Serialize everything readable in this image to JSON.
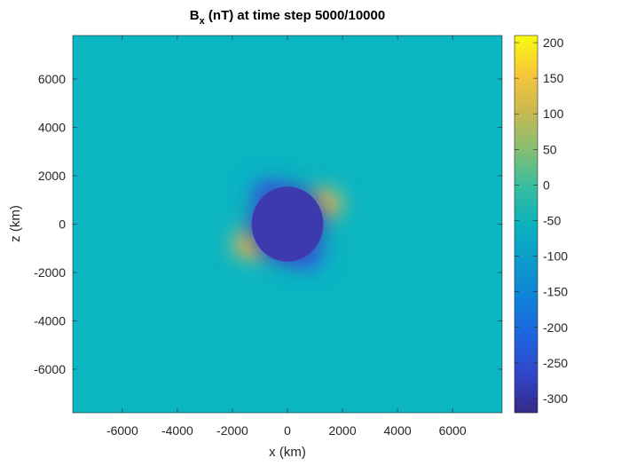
{
  "chart_data": {
    "type": "heatmap",
    "title": {
      "main": "B",
      "subscript": "x",
      "rest": " (nT) at time step 5000/10000"
    },
    "xlabel": "x (km)",
    "ylabel": "z (km)",
    "xlim": [
      -7800,
      7800
    ],
    "ylim": [
      -7800,
      7800
    ],
    "xticks": [
      -6000,
      -4000,
      -2000,
      0,
      2000,
      4000,
      6000
    ],
    "yticks": [
      6000,
      4000,
      2000,
      0,
      -2000,
      -4000,
      -6000
    ],
    "xtick_labels": [
      "-6000",
      "-4000",
      "-2000",
      "0",
      "2000",
      "4000",
      "6000"
    ],
    "ytick_labels": [
      "6000",
      "4000",
      "2000",
      "0",
      "-2000",
      "-4000",
      "-6000"
    ],
    "colorbar": {
      "limits": [
        -320,
        210
      ],
      "ticks": [
        200,
        150,
        100,
        50,
        0,
        -50,
        -100,
        -150,
        -200,
        -250,
        -300
      ],
      "tick_labels": [
        "200",
        "150",
        "100",
        "50",
        "0",
        "-50",
        "-100",
        "-150",
        "-200",
        "-250",
        "-300"
      ],
      "colormap": "parula"
    },
    "field": {
      "background_value": -65,
      "body": {
        "center": [
          0,
          0
        ],
        "radius_x_km": 1300,
        "radius_z_km": 1550,
        "value": -310
      },
      "lobes": [
        {
          "quadrant": "upper-right",
          "center": [
            1350,
            850
          ],
          "peak_value": 160
        },
        {
          "quadrant": "lower-left",
          "center": [
            -1350,
            -850
          ],
          "peak_value": 160
        },
        {
          "quadrant": "upper-left",
          "center": [
            -700,
            1350
          ],
          "peak_value": -230
        },
        {
          "quadrant": "lower-right",
          "center": [
            700,
            -1350
          ],
          "peak_value": -230
        }
      ]
    },
    "grid": false,
    "legend": "none"
  },
  "colors": {
    "background_cyan": "#0bb5c2",
    "body_blue": "#3d3aad",
    "lobe_yellow": "#fac537",
    "parula_min": "#352a87",
    "parula_max": "#f9fb0e"
  }
}
